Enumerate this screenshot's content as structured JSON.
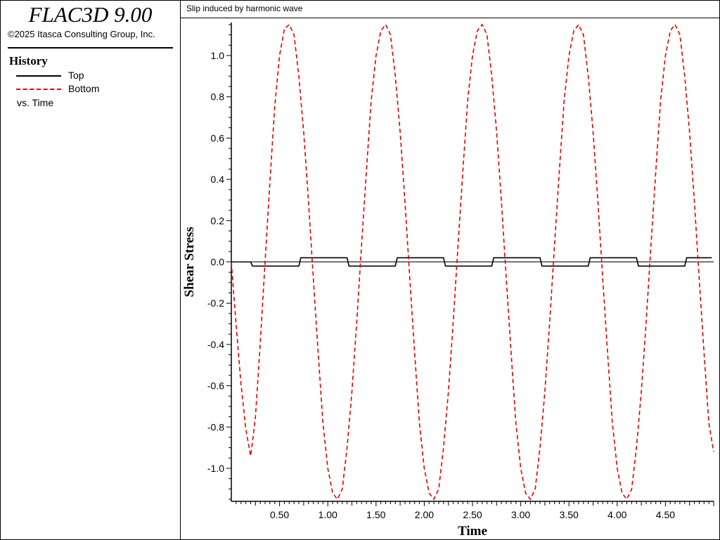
{
  "app": {
    "title": "FLAC3D 9.00",
    "copyright": "©2025 Itasca Consulting Group, Inc."
  },
  "legend": {
    "heading": "History",
    "items": [
      {
        "label": "Top",
        "color": "#000000",
        "style": "solid"
      },
      {
        "label": "Bottom",
        "color": "#e00000",
        "style": "dashed"
      }
    ],
    "vs_label": "vs. Time"
  },
  "chart_data": {
    "type": "line",
    "title": "Slip induced by harmonic wave",
    "xlabel": "Time",
    "ylabel": "Shear Stress",
    "xlim": [
      0.0,
      5.0
    ],
    "ylim": [
      -1.16,
      1.16
    ],
    "x_ticks": [
      "0.50",
      "1.00",
      "1.50",
      "2.00",
      "2.50",
      "3.00",
      "3.50",
      "4.00",
      "4.50"
    ],
    "y_ticks": [
      "1.0",
      "0.8",
      "0.6",
      "0.4",
      "0.2",
      "0.0",
      "-0.2",
      "-0.4",
      "-0.6",
      "-0.8",
      "-1.0"
    ],
    "series": [
      {
        "name": "Top",
        "color": "#000000",
        "style": "solid",
        "x": [
          0.0,
          0.2,
          0.22,
          0.7,
          0.72,
          1.2,
          1.22,
          1.7,
          1.72,
          2.2,
          2.22,
          2.7,
          2.72,
          3.2,
          3.22,
          3.7,
          3.72,
          4.2,
          4.22,
          4.7,
          4.72,
          4.98
        ],
        "values": [
          0.0,
          0.0,
          -0.02,
          -0.02,
          0.02,
          0.02,
          -0.02,
          -0.02,
          0.02,
          0.02,
          -0.02,
          -0.02,
          0.02,
          0.02,
          -0.02,
          -0.02,
          0.02,
          0.02,
          -0.02,
          -0.02,
          0.02,
          0.02
        ]
      },
      {
        "name": "Bottom",
        "color": "#e00000",
        "style": "dashed",
        "x": [
          0.0,
          0.05,
          0.1,
          0.15,
          0.2,
          0.22,
          0.25,
          0.3,
          0.35,
          0.4,
          0.45,
          0.5,
          0.55,
          0.6,
          0.65,
          0.7,
          0.75,
          0.8,
          0.85,
          0.9,
          0.95,
          1.0,
          1.05,
          1.1,
          1.15,
          1.2,
          1.25,
          1.3,
          1.35,
          1.4,
          1.45,
          1.5,
          1.55,
          1.6,
          1.65,
          1.7,
          1.75,
          1.8,
          1.85,
          1.9,
          1.95,
          2.0,
          2.05,
          2.1,
          2.15,
          2.2,
          2.25,
          2.3,
          2.35,
          2.4,
          2.45,
          2.5,
          2.55,
          2.6,
          2.65,
          2.7,
          2.75,
          2.8,
          2.85,
          2.9,
          2.95,
          3.0,
          3.05,
          3.1,
          3.15,
          3.2,
          3.25,
          3.3,
          3.35,
          3.4,
          3.45,
          3.5,
          3.55,
          3.6,
          3.65,
          3.7,
          3.75,
          3.8,
          3.85,
          3.9,
          3.95,
          4.0,
          4.05,
          4.1,
          4.15,
          4.2,
          4.25,
          4.3,
          4.35,
          4.4,
          4.45,
          4.5,
          4.55,
          4.6,
          4.65,
          4.7,
          4.75,
          4.8,
          4.85,
          4.9,
          4.95,
          5.0
        ],
        "values": [
          0.0,
          -0.31,
          -0.59,
          -0.81,
          -0.94,
          -0.87,
          -0.75,
          -0.39,
          0.0,
          0.39,
          0.75,
          1.0,
          1.13,
          1.15,
          1.1,
          0.9,
          0.63,
          0.29,
          -0.08,
          -0.44,
          -0.78,
          -1.0,
          -1.12,
          -1.15,
          -1.1,
          -0.9,
          -0.63,
          -0.29,
          0.08,
          0.44,
          0.78,
          1.0,
          1.12,
          1.15,
          1.1,
          0.9,
          0.63,
          0.29,
          -0.08,
          -0.44,
          -0.78,
          -1.0,
          -1.12,
          -1.15,
          -1.1,
          -0.9,
          -0.63,
          -0.29,
          0.08,
          0.44,
          0.78,
          1.0,
          1.12,
          1.15,
          1.1,
          0.9,
          0.63,
          0.29,
          -0.08,
          -0.44,
          -0.78,
          -1.0,
          -1.12,
          -1.15,
          -1.1,
          -0.9,
          -0.63,
          -0.29,
          0.08,
          0.44,
          0.78,
          1.0,
          1.12,
          1.15,
          1.1,
          0.9,
          0.63,
          0.29,
          -0.08,
          -0.44,
          -0.78,
          -1.0,
          -1.12,
          -1.15,
          -1.1,
          -0.9,
          -0.63,
          -0.29,
          0.08,
          0.44,
          0.78,
          1.0,
          1.12,
          1.15,
          1.1,
          0.9,
          0.63,
          0.29,
          -0.08,
          -0.44,
          -0.78,
          -0.92
        ]
      }
    ],
    "grid": false,
    "legend_position": "left-panel"
  }
}
